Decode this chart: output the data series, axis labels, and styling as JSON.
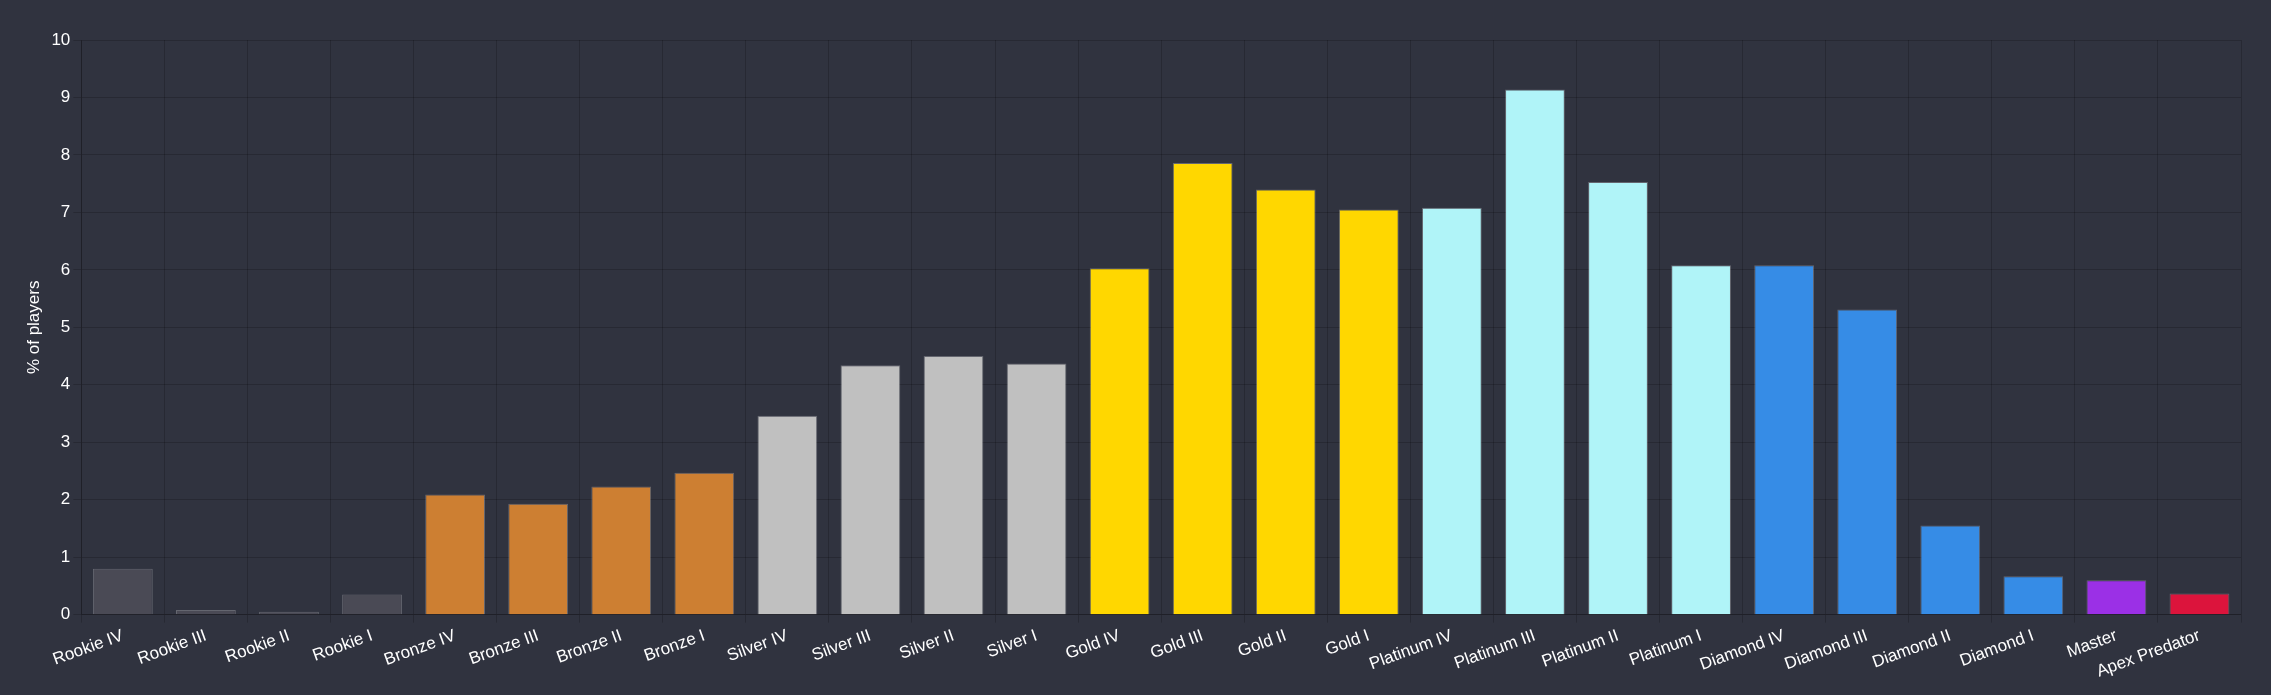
{
  "chart_data": {
    "type": "bar",
    "ylabel": "% of players",
    "categories": [
      "Rookie IV",
      "Rookie III",
      "Rookie II",
      "Rookie I",
      "Bronze IV",
      "Bronze III",
      "Bronze II",
      "Bronze I",
      "Silver IV",
      "Silver III",
      "Silver II",
      "Silver I",
      "Gold IV",
      "Gold III",
      "Gold II",
      "Gold I",
      "Platinum IV",
      "Platinum III",
      "Platinum II",
      "Platinum I",
      "Diamond IV",
      "Diamond III",
      "Diamond II",
      "Diamond I",
      "Master",
      "Apex Predator"
    ],
    "values": [
      0.8,
      0.08,
      0.05,
      0.35,
      2.09,
      1.93,
      2.23,
      2.47,
      3.46,
      4.34,
      4.5,
      4.37,
      6.03,
      7.86,
      7.4,
      7.05,
      7.08,
      9.14,
      7.53,
      6.08,
      6.08,
      5.31,
      1.55,
      0.67,
      0.6,
      0.37
    ],
    "colors": [
      "#4a4a55",
      "#4a4a55",
      "#4a4a55",
      "#4a4a55",
      "#cd7f32",
      "#cd7f32",
      "#cd7f32",
      "#cd7f32",
      "#c0c0c0",
      "#c0c0c0",
      "#c0c0c0",
      "#c0c0c0",
      "#ffd700",
      "#ffd700",
      "#ffd700",
      "#ffd700",
      "#b0f4f8",
      "#b0f4f8",
      "#b0f4f8",
      "#b0f4f8",
      "#368ce6",
      "#368ce6",
      "#368ce6",
      "#368ce6",
      "#9b30e6",
      "#dc143c"
    ],
    "ylim": [
      0,
      10
    ],
    "yticks": [
      0,
      1,
      2,
      3,
      4,
      5,
      6,
      7,
      8,
      9,
      10
    ],
    "grid": true,
    "legend": false
  }
}
